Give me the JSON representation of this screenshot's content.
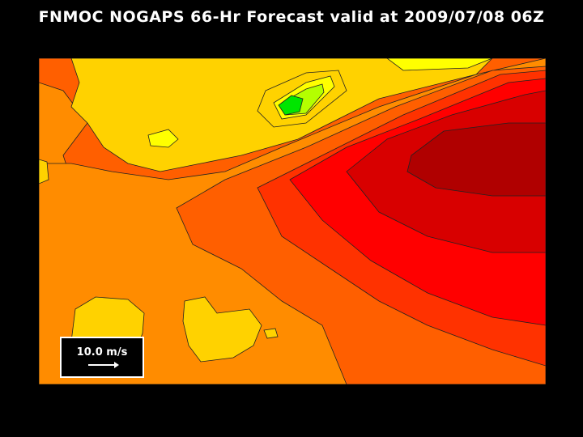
{
  "title": "FNMOC NOGAPS 66-Hr Forecast valid at 2009/07/08 06Z",
  "legend": {
    "label": "10.0 m/s",
    "arrow": "vector-reference-arrow"
  },
  "colors": {
    "background": "#000000",
    "orange": "#ff8c00",
    "dark_orange": "#ff5f00",
    "red_orange": "#ff3200",
    "red": "#ff0000",
    "dark_red": "#d80000",
    "darkest_red": "#b00000",
    "gold": "#ffd200",
    "yellow": "#ffff00",
    "yellow_green": "#b4ff00",
    "green": "#00e600"
  }
}
